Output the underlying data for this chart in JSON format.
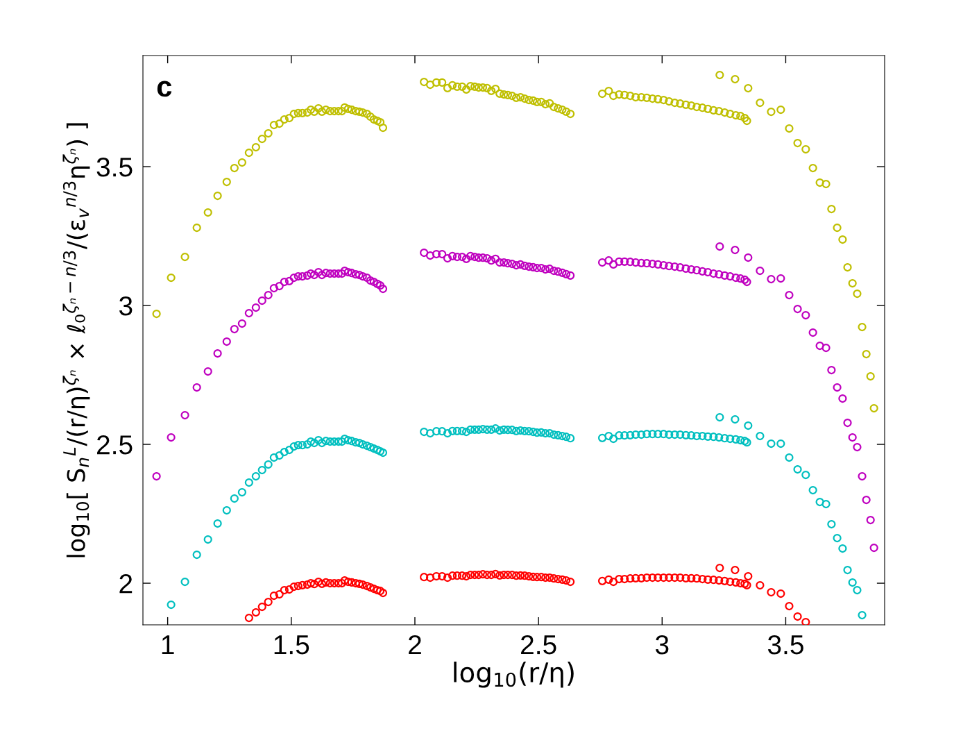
{
  "chart_data": {
    "type": "scatter",
    "xlabel": "log$_{10}$(r/η)",
    "ylabel": "log$_{10}$[ S$_{n}$$^{L}$/(r/η)$^{ζₙ}$ × ℓ₀$^{ζₙ−n/3}$/(ε$_{v}$$^{n/3}$η$^{ζₙ}$) ]",
    "annotations": [
      "c"
    ],
    "xlim": [
      0.9,
      3.9
    ],
    "xticks": [
      1,
      1.5,
      2,
      2.5,
      3,
      3.5
    ],
    "ylim": [
      1.85,
      3.9
    ],
    "yticks": [
      2,
      2.5,
      3,
      3.5
    ],
    "grid": false,
    "marker": "circle",
    "series": [
      {
        "color": "#bfbf00",
        "x": [
          0.955,
          1.014,
          1.07,
          1.118,
          1.163,
          1.202,
          1.239,
          1.27,
          1.301,
          1.329,
          1.357,
          1.382,
          1.407,
          1.43,
          1.452,
          1.472,
          1.492,
          1.511,
          1.528,
          1.545,
          1.565,
          1.579,
          1.593,
          1.61,
          1.624,
          1.64,
          1.657,
          1.674,
          1.691,
          1.705,
          1.716,
          1.73,
          1.744,
          1.761,
          1.775,
          1.789,
          1.806,
          1.82,
          1.834,
          1.848,
          1.86,
          1.871,
          2.037,
          2.062,
          2.087,
          2.11,
          2.132,
          2.152,
          2.171,
          2.191,
          2.208,
          2.225,
          2.242,
          2.258,
          2.275,
          2.292,
          2.309,
          2.326,
          2.343,
          2.36,
          2.376,
          2.393,
          2.41,
          2.427,
          2.444,
          2.461,
          2.478,
          2.494,
          2.511,
          2.528,
          2.545,
          2.562,
          2.579,
          2.596,
          2.612,
          2.629,
          2.758,
          2.784,
          2.803,
          2.826,
          2.848,
          2.871,
          2.893,
          2.916,
          2.938,
          2.961,
          2.983,
          3.006,
          3.028,
          3.051,
          3.073,
          3.096,
          3.118,
          3.14,
          3.163,
          3.185,
          3.208,
          3.23,
          3.253,
          3.275,
          3.298,
          3.317,
          3.334,
          3.343,
          3.233,
          3.295,
          3.348,
          3.396,
          3.441,
          3.48,
          3.514,
          3.548,
          3.581,
          3.61,
          3.638,
          3.663,
          3.685,
          3.708,
          3.73,
          3.75,
          3.77,
          3.789,
          3.809,
          3.826,
          3.843,
          3.857
        ],
        "values": [
          2.97,
          3.1,
          3.175,
          3.28,
          3.335,
          3.395,
          3.445,
          3.495,
          3.515,
          3.55,
          3.57,
          3.6,
          3.62,
          3.65,
          3.655,
          3.67,
          3.675,
          3.69,
          3.693,
          3.693,
          3.695,
          3.705,
          3.698,
          3.71,
          3.698,
          3.705,
          3.7,
          3.7,
          3.7,
          3.7,
          3.713,
          3.708,
          3.705,
          3.7,
          3.698,
          3.695,
          3.69,
          3.68,
          3.67,
          3.665,
          3.66,
          3.64,
          3.805,
          3.795,
          3.803,
          3.803,
          3.783,
          3.793,
          3.788,
          3.788,
          3.778,
          3.79,
          3.788,
          3.785,
          3.785,
          3.783,
          3.773,
          3.78,
          3.763,
          3.76,
          3.758,
          3.755,
          3.748,
          3.75,
          3.745,
          3.74,
          3.738,
          3.733,
          3.733,
          3.725,
          3.728,
          3.715,
          3.71,
          3.705,
          3.698,
          3.69,
          3.7625,
          3.7725,
          3.755,
          3.76,
          3.758,
          3.755,
          3.75,
          3.75,
          3.748,
          3.745,
          3.743,
          3.74,
          3.735,
          3.73,
          3.727,
          3.723,
          3.72,
          3.715,
          3.712,
          3.708,
          3.703,
          3.7,
          3.695,
          3.69,
          3.685,
          3.682,
          3.675,
          3.665,
          3.83,
          3.815,
          3.7825,
          3.73,
          3.6975,
          3.705,
          3.6375,
          3.585,
          3.5625,
          3.495,
          3.4425,
          3.4375,
          3.3475,
          3.28,
          3.2375,
          3.1375,
          3.08,
          3.0425,
          2.9225,
          2.825,
          2.745,
          2.63
        ]
      },
      {
        "color": "#bf00bf",
        "x": [
          0.955,
          1.014,
          1.07,
          1.118,
          1.163,
          1.202,
          1.239,
          1.27,
          1.301,
          1.329,
          1.357,
          1.382,
          1.407,
          1.43,
          1.452,
          1.472,
          1.492,
          1.511,
          1.528,
          1.545,
          1.565,
          1.579,
          1.593,
          1.61,
          1.624,
          1.64,
          1.657,
          1.674,
          1.691,
          1.705,
          1.716,
          1.73,
          1.744,
          1.761,
          1.775,
          1.789,
          1.806,
          1.82,
          1.834,
          1.848,
          1.86,
          1.871,
          2.037,
          2.062,
          2.087,
          2.11,
          2.132,
          2.152,
          2.171,
          2.191,
          2.208,
          2.225,
          2.242,
          2.258,
          2.275,
          2.292,
          2.309,
          2.326,
          2.343,
          2.36,
          2.376,
          2.393,
          2.41,
          2.427,
          2.444,
          2.461,
          2.478,
          2.494,
          2.511,
          2.528,
          2.545,
          2.562,
          2.579,
          2.596,
          2.612,
          2.629,
          2.758,
          2.784,
          2.803,
          2.826,
          2.848,
          2.871,
          2.893,
          2.916,
          2.938,
          2.961,
          2.983,
          3.006,
          3.028,
          3.051,
          3.073,
          3.096,
          3.118,
          3.14,
          3.163,
          3.185,
          3.208,
          3.23,
          3.253,
          3.275,
          3.298,
          3.317,
          3.334,
          3.343,
          3.233,
          3.295,
          3.348,
          3.396,
          3.441,
          3.48,
          3.514,
          3.548,
          3.581,
          3.61,
          3.638,
          3.663,
          3.685,
          3.708,
          3.73,
          3.75,
          3.77,
          3.789,
          3.809,
          3.826,
          3.843,
          3.857
        ],
        "values": [
          2.385,
          2.525,
          2.605,
          2.705,
          2.7625,
          2.8275,
          2.87,
          2.915,
          2.935,
          2.9725,
          2.9925,
          3.0175,
          3.0375,
          3.0625,
          3.07,
          3.085,
          3.088,
          3.1,
          3.105,
          3.105,
          3.108,
          3.115,
          3.11,
          3.12,
          3.11,
          3.117,
          3.115,
          3.115,
          3.115,
          3.115,
          3.125,
          3.12,
          3.117,
          3.112,
          3.11,
          3.105,
          3.1,
          3.09,
          3.085,
          3.078,
          3.072,
          3.06,
          3.19,
          3.18,
          3.185,
          3.185,
          3.17,
          3.178,
          3.175,
          3.175,
          3.168,
          3.178,
          3.175,
          3.172,
          3.172,
          3.17,
          3.162,
          3.168,
          3.155,
          3.155,
          3.152,
          3.15,
          3.145,
          3.148,
          3.143,
          3.14,
          3.138,
          3.135,
          3.135,
          3.13,
          3.132,
          3.125,
          3.122,
          3.118,
          3.113,
          3.108,
          3.155,
          3.162,
          3.148,
          3.158,
          3.158,
          3.157,
          3.155,
          3.153,
          3.152,
          3.15,
          3.148,
          3.145,
          3.142,
          3.14,
          3.137,
          3.133,
          3.13,
          3.127,
          3.123,
          3.12,
          3.115,
          3.112,
          3.108,
          3.105,
          3.1,
          3.097,
          3.093,
          3.085,
          3.2125,
          3.2,
          3.1725,
          3.125,
          3.095,
          3.0975,
          3.0375,
          2.9875,
          2.965,
          2.9025,
          2.855,
          2.8475,
          2.7675,
          2.705,
          2.665,
          2.5775,
          2.525,
          2.49,
          2.385,
          2.3,
          2.2275,
          2.1275
        ]
      },
      {
        "color": "#00bfbf",
        "x": [
          1.014,
          1.07,
          1.118,
          1.163,
          1.202,
          1.239,
          1.27,
          1.301,
          1.329,
          1.357,
          1.382,
          1.407,
          1.43,
          1.452,
          1.472,
          1.492,
          1.511,
          1.528,
          1.545,
          1.565,
          1.579,
          1.593,
          1.61,
          1.624,
          1.64,
          1.657,
          1.674,
          1.691,
          1.705,
          1.716,
          1.73,
          1.744,
          1.761,
          1.775,
          1.789,
          1.806,
          1.82,
          1.834,
          1.848,
          1.86,
          1.871,
          2.037,
          2.062,
          2.087,
          2.11,
          2.132,
          2.152,
          2.171,
          2.191,
          2.208,
          2.225,
          2.242,
          2.258,
          2.275,
          2.292,
          2.309,
          2.326,
          2.343,
          2.36,
          2.376,
          2.393,
          2.41,
          2.427,
          2.444,
          2.461,
          2.478,
          2.494,
          2.511,
          2.528,
          2.545,
          2.562,
          2.579,
          2.596,
          2.612,
          2.629,
          2.758,
          2.784,
          2.803,
          2.826,
          2.848,
          2.871,
          2.893,
          2.916,
          2.938,
          2.961,
          2.983,
          3.006,
          3.028,
          3.051,
          3.073,
          3.096,
          3.118,
          3.14,
          3.163,
          3.185,
          3.208,
          3.23,
          3.253,
          3.275,
          3.298,
          3.317,
          3.334,
          3.343,
          3.233,
          3.295,
          3.348,
          3.396,
          3.441,
          3.48,
          3.514,
          3.548,
          3.581,
          3.61,
          3.638,
          3.663,
          3.685,
          3.708,
          3.73,
          3.75,
          3.77,
          3.789,
          3.809
        ],
        "values": [
          1.9225,
          2.005,
          2.1025,
          2.1575,
          2.215,
          2.2625,
          2.305,
          2.3275,
          2.3625,
          2.385,
          2.4075,
          2.4275,
          2.4525,
          2.46,
          2.4725,
          2.48,
          2.4925,
          2.497,
          2.497,
          2.5,
          2.51,
          2.505,
          2.515,
          2.505,
          2.512,
          2.51,
          2.51,
          2.51,
          2.51,
          2.52,
          2.515,
          2.512,
          2.507,
          2.505,
          2.5,
          2.495,
          2.49,
          2.485,
          2.48,
          2.475,
          2.47,
          2.545,
          2.54,
          2.547,
          2.547,
          2.54,
          2.548,
          2.548,
          2.548,
          2.545,
          2.553,
          2.553,
          2.553,
          2.555,
          2.553,
          2.553,
          2.557,
          2.55,
          2.553,
          2.552,
          2.552,
          2.548,
          2.55,
          2.548,
          2.547,
          2.545,
          2.542,
          2.543,
          2.54,
          2.54,
          2.535,
          2.533,
          2.53,
          2.527,
          2.522,
          2.523,
          2.53,
          2.52,
          2.532,
          2.532,
          2.533,
          2.535,
          2.535,
          2.537,
          2.537,
          2.537,
          2.537,
          2.535,
          2.535,
          2.535,
          2.533,
          2.532,
          2.53,
          2.53,
          2.528,
          2.527,
          2.525,
          2.522,
          2.52,
          2.518,
          2.515,
          2.512,
          2.507,
          2.5975,
          2.59,
          2.5675,
          2.53,
          2.5025,
          2.5025,
          2.4525,
          2.41,
          2.39,
          2.335,
          2.2925,
          2.285,
          2.2125,
          2.1625,
          2.125,
          2.0475,
          2.0025,
          1.975,
          1.885
        ]
      },
      {
        "color": "#ff0000",
        "x": [
          1.329,
          1.357,
          1.382,
          1.407,
          1.43,
          1.452,
          1.472,
          1.492,
          1.511,
          1.528,
          1.545,
          1.565,
          1.579,
          1.593,
          1.61,
          1.624,
          1.64,
          1.657,
          1.674,
          1.691,
          1.705,
          1.716,
          1.73,
          1.744,
          1.761,
          1.775,
          1.789,
          1.806,
          1.82,
          1.834,
          1.848,
          1.86,
          1.871,
          2.037,
          2.062,
          2.087,
          2.11,
          2.132,
          2.152,
          2.171,
          2.191,
          2.208,
          2.225,
          2.242,
          2.258,
          2.275,
          2.292,
          2.309,
          2.326,
          2.343,
          2.36,
          2.376,
          2.393,
          2.41,
          2.427,
          2.444,
          2.461,
          2.478,
          2.494,
          2.511,
          2.528,
          2.545,
          2.562,
          2.579,
          2.596,
          2.612,
          2.629,
          2.758,
          2.784,
          2.803,
          2.826,
          2.848,
          2.871,
          2.893,
          2.916,
          2.938,
          2.961,
          2.983,
          3.006,
          3.028,
          3.051,
          3.073,
          3.096,
          3.118,
          3.14,
          3.163,
          3.185,
          3.208,
          3.23,
          3.253,
          3.275,
          3.298,
          3.317,
          3.334,
          3.343,
          3.233,
          3.295,
          3.348,
          3.396,
          3.441,
          3.48,
          3.514,
          3.548,
          3.581
        ],
        "values": [
          1.875,
          1.895,
          1.915,
          1.9325,
          1.955,
          1.96,
          1.975,
          1.9775,
          1.9875,
          1.99,
          1.993,
          1.995,
          2.0,
          1.997,
          2.005,
          1.998,
          2.003,
          2.0,
          2.0,
          2.0,
          2.0,
          2.01,
          2.005,
          2.003,
          2.0,
          1.998,
          1.995,
          1.99,
          1.985,
          1.98,
          1.975,
          1.972,
          1.965,
          2.022,
          2.02,
          2.025,
          2.025,
          2.02,
          2.027,
          2.027,
          2.027,
          2.025,
          2.03,
          2.03,
          2.03,
          2.032,
          2.03,
          2.03,
          2.033,
          2.028,
          2.03,
          2.03,
          2.03,
          2.027,
          2.028,
          2.027,
          2.025,
          2.023,
          2.022,
          2.022,
          2.02,
          2.02,
          2.017,
          2.015,
          2.013,
          2.01,
          2.005,
          2.008,
          2.013,
          2.005,
          2.015,
          2.015,
          2.017,
          2.018,
          2.018,
          2.02,
          2.02,
          2.02,
          2.02,
          2.02,
          2.02,
          2.02,
          2.018,
          2.018,
          2.017,
          2.015,
          2.013,
          2.012,
          2.01,
          2.008,
          2.005,
          2.003,
          2.0,
          1.998,
          1.993,
          2.055,
          2.0475,
          2.025,
          1.9925,
          1.9675,
          1.9625,
          1.9175,
          1.88,
          1.86
        ]
      }
    ]
  }
}
